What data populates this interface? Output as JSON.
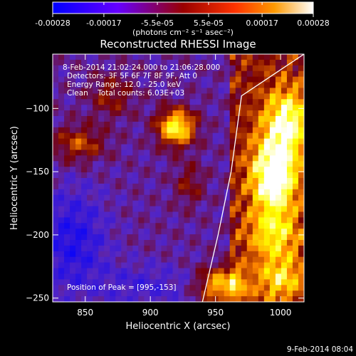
{
  "colorbar": {
    "tick_labels": [
      "-0.00028",
      "-0.00017",
      "-5.5e-05",
      "5.5e-05",
      "0.00017",
      "0.00028"
    ],
    "unit_label": "(photons cm⁻² s⁻¹ asec⁻²)",
    "range": [
      -0.00028,
      0.00028
    ]
  },
  "chart_data": {
    "type": "heatmap",
    "title": "Reconstructed RHESSI Image",
    "xlabel": "Heliocentric X (arcsec)",
    "ylabel": "Heliocentric Y (arcsec)",
    "x_ticks": [
      850,
      900,
      950,
      1000
    ],
    "y_ticks": [
      -100,
      -150,
      -200,
      -250
    ],
    "xlim": [
      825,
      1018
    ],
    "ylim": [
      -253,
      -57
    ],
    "colormap": [
      "#0000ff",
      "#8800ff",
      "#ff0000",
      "#ff8800",
      "#ffff00",
      "#ffffff"
    ],
    "limb": [
      [
        1018,
        -57
      ],
      [
        970,
        -90
      ],
      [
        962,
        -150
      ],
      [
        952,
        -200
      ],
      [
        940,
        -253
      ]
    ],
    "peak": [
      995,
      -153
    ],
    "annotations": [
      "8-Feb-2014 21:02:24.000 to 21:06:28.000",
      "Detectors: 3F 5F 6F 7F 8F 9F, Att 0",
      "Energy Range: 12.0 - 25.0 keV",
      "Clean    Total counts: 6.03E+03",
      "Position of Peak = [995,-153]"
    ]
  },
  "footer": {
    "timestamp": "9-Feb-2014 08:04"
  }
}
